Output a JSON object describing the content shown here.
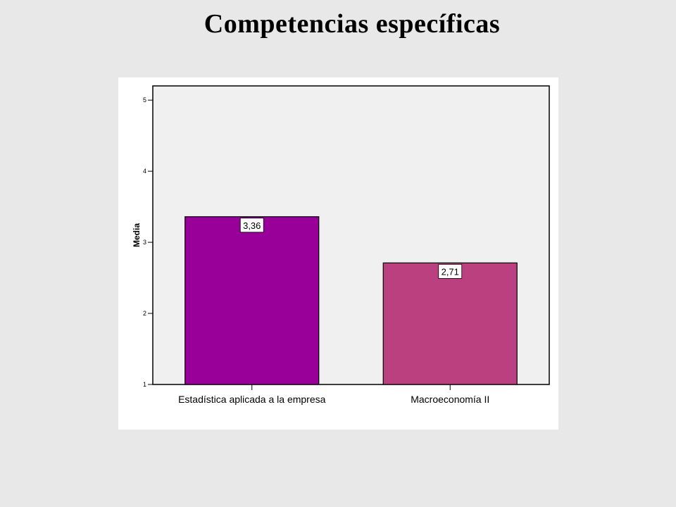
{
  "slide": {
    "title": "Competencias específicas"
  },
  "chart_data": {
    "type": "bar",
    "title": "Competencias específicas",
    "xlabel": "",
    "ylabel": "Media",
    "categories": [
      "Estadística aplicada a la empresa",
      "Macroeconomía II"
    ],
    "values": [
      3.36,
      2.71
    ],
    "data_labels": [
      "3,36",
      "2,71"
    ],
    "ylim": [
      1,
      5.2
    ],
    "yticks": [
      1,
      2,
      3,
      4,
      5
    ],
    "ytick_labels": [
      "1",
      "2",
      "3",
      "4",
      "5"
    ],
    "grid": false,
    "legend": "none",
    "bar_colors": [
      "#990099",
      "#bb4080"
    ],
    "plot_background": "#f0f0f0"
  }
}
